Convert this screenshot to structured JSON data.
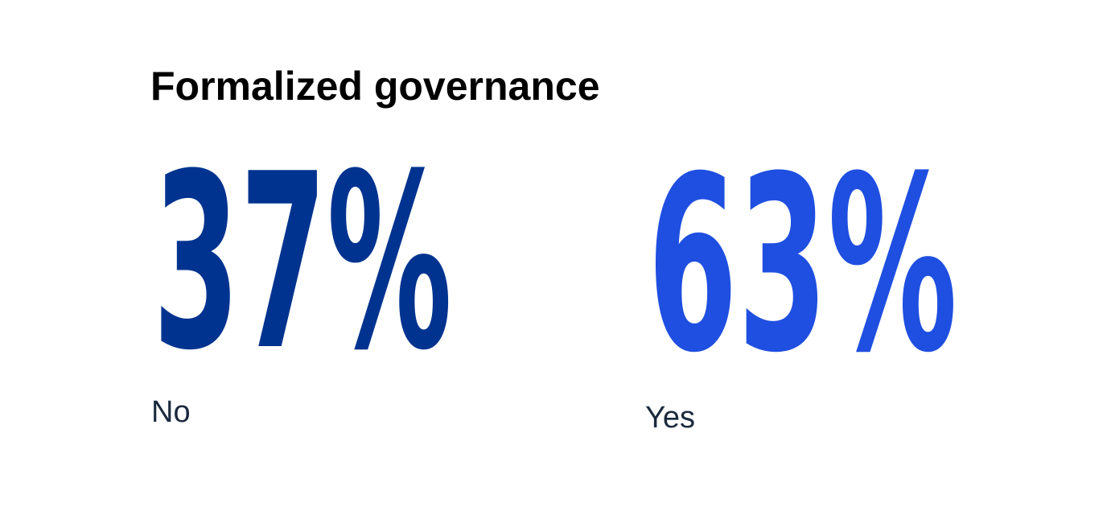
{
  "title": "Formalized governance",
  "stats": [
    {
      "value": "37%",
      "label": "No",
      "color": "#00338f"
    },
    {
      "value": "63%",
      "label": "Yes",
      "color": "#1f4fe0"
    }
  ]
}
